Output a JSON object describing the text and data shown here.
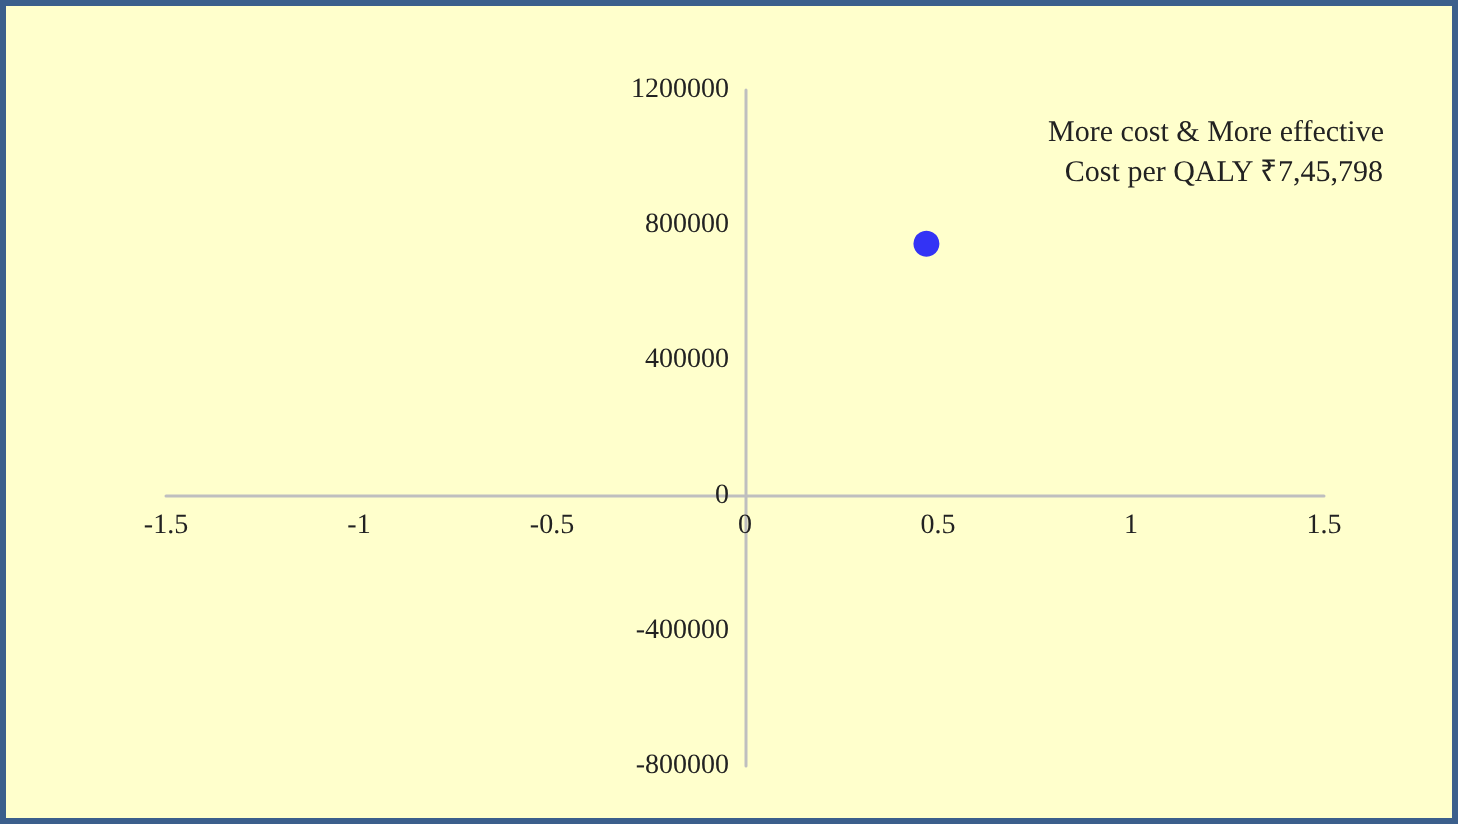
{
  "chart_data": {
    "type": "scatter",
    "x": [
      0.47
    ],
    "values": [
      745000
    ],
    "color": "#0000ff",
    "marker": "circle",
    "xlim": [
      -1.5,
      1.5
    ],
    "xticks": [
      -1.5,
      -1,
      -0.5,
      0,
      0.5,
      1,
      1.5
    ],
    "ylim": [
      -800000,
      1200000
    ],
    "yticks": [
      -800000,
      -400000,
      0,
      400000,
      800000,
      1200000
    ],
    "annotations": [
      "More cost & More effective",
      "Cost per QALY ₹7,45,798"
    ]
  }
}
